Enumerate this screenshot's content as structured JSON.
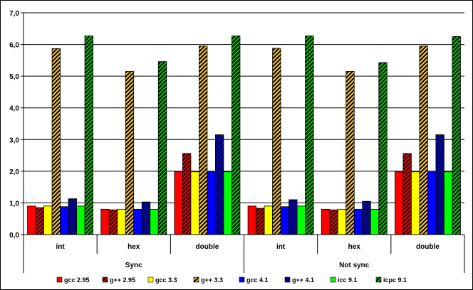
{
  "chart_data": {
    "type": "bar",
    "groups": [
      {
        "label": "Sync",
        "categories": [
          "int",
          "hex",
          "double"
        ]
      },
      {
        "label": "Not sync",
        "categories": [
          "int",
          "hex",
          "double"
        ]
      }
    ],
    "categories": [
      "int",
      "hex",
      "double",
      "int",
      "hex",
      "double"
    ],
    "ylim": [
      0,
      7
    ],
    "yticks": [
      "0,0",
      "1,0",
      "2,0",
      "3,0",
      "4,0",
      "5,0",
      "6,0",
      "7,0"
    ],
    "grid": true,
    "legend_position": "bottom",
    "series": [
      {
        "name": "gcc 2.95",
        "color": "#ff0000",
        "hatched": false,
        "values": [
          0.9,
          0.8,
          1.98,
          0.9,
          0.8,
          1.98
        ]
      },
      {
        "name": "g++ 2.95",
        "color": "#ff0000",
        "hatched": true,
        "values": [
          0.85,
          0.78,
          2.56,
          0.83,
          0.78,
          2.56
        ]
      },
      {
        "name": "gcc 3.3",
        "color": "#ffff00",
        "hatched": false,
        "values": [
          0.9,
          0.8,
          1.98,
          0.9,
          0.8,
          1.98
        ]
      },
      {
        "name": "g++ 3.3",
        "color": "#ffcc33",
        "hatched": true,
        "values": [
          5.87,
          5.15,
          5.95,
          5.88,
          5.15,
          5.95
        ]
      },
      {
        "name": "gcc 4.1",
        "color": "#0000ff",
        "hatched": false,
        "values": [
          0.88,
          0.8,
          1.98,
          0.88,
          0.8,
          1.98
        ]
      },
      {
        "name": "g++ 4.1",
        "color": "#0000ff",
        "hatched": true,
        "values": [
          1.13,
          1.03,
          3.15,
          1.1,
          1.05,
          3.15
        ]
      },
      {
        "name": "icc 9.1",
        "color": "#00ff00",
        "hatched": false,
        "values": [
          0.9,
          0.8,
          1.98,
          0.9,
          0.8,
          1.98
        ]
      },
      {
        "name": "icpc 9.1",
        "color": "#00cc00",
        "hatched": true,
        "values": [
          6.27,
          5.46,
          6.27,
          6.27,
          5.43,
          6.25
        ]
      }
    ]
  }
}
